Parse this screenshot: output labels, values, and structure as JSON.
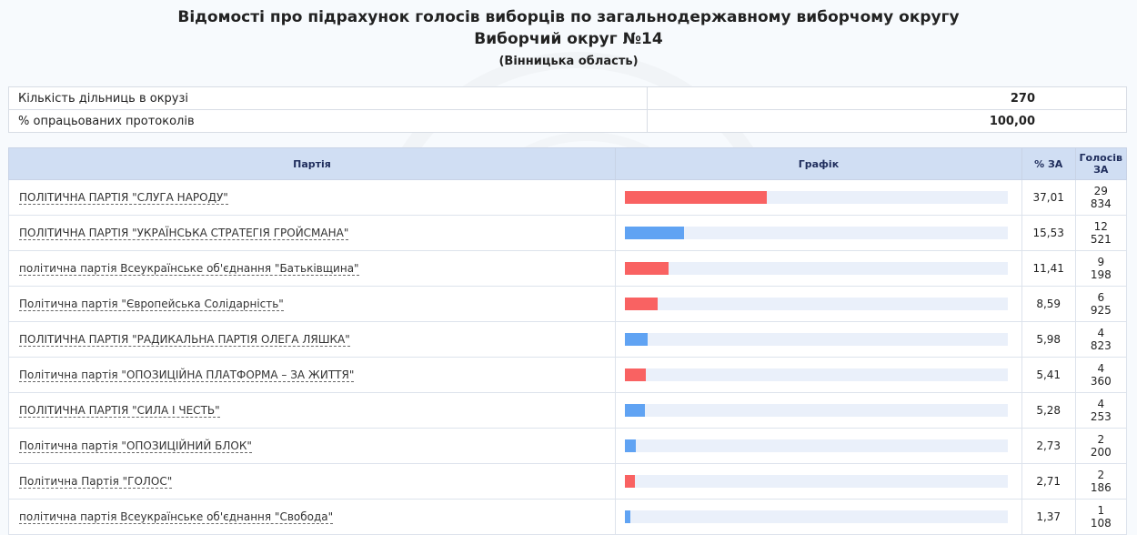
{
  "header": {
    "title": "Відомості про підрахунок голосів виборців по загальнодержавному виборчому округу",
    "district": "Виборчий округ №14",
    "region": "(Вінницька область)"
  },
  "summary": [
    {
      "label": "Кількість дільниць в окрузі",
      "value": "270"
    },
    {
      "label": "% опрацьованих протоколів",
      "value": "100,00"
    }
  ],
  "table": {
    "col_party": "Партія",
    "col_graph": "Графік",
    "col_pct": "% ЗА",
    "col_votes": "Голосів ЗА"
  },
  "colors": {
    "red": "#f96262",
    "blue": "#60a3f3"
  },
  "rows": [
    {
      "party": "ПОЛІТИЧНА ПАРТІЯ \"СЛУГА НАРОДУ\"",
      "pct": "37,01",
      "pct_value": 37.01,
      "votes_top": "29",
      "votes_bottom": "834",
      "color": "red"
    },
    {
      "party": "ПОЛІТИЧНА ПАРТІЯ \"УКРАЇНСЬКА СТРАТЕГІЯ ГРОЙСМАНА\"",
      "pct": "15,53",
      "pct_value": 15.53,
      "votes_top": "12",
      "votes_bottom": "521",
      "color": "blue"
    },
    {
      "party": "політична партія Всеукраїнське об'єднання \"Батьківщина\"",
      "pct": "11,41",
      "pct_value": 11.41,
      "votes_top": "9",
      "votes_bottom": "198",
      "color": "red"
    },
    {
      "party": "Політична партія \"Європейська Солідарність\"",
      "pct": "8,59",
      "pct_value": 8.59,
      "votes_top": "6",
      "votes_bottom": "925",
      "color": "red"
    },
    {
      "party": "ПОЛІТИЧНА ПАРТІЯ \"РАДИКАЛЬНА ПАРТІЯ ОЛЕГА ЛЯШКА\"",
      "pct": "5,98",
      "pct_value": 5.98,
      "votes_top": "4",
      "votes_bottom": "823",
      "color": "blue"
    },
    {
      "party": "Політична партія \"ОПОЗИЦІЙНА ПЛАТФОРМА – ЗА ЖИТТЯ\"",
      "pct": "5,41",
      "pct_value": 5.41,
      "votes_top": "4",
      "votes_bottom": "360",
      "color": "red"
    },
    {
      "party": "ПОЛІТИЧНА ПАРТІЯ \"СИЛА І ЧЕСТЬ\"",
      "pct": "5,28",
      "pct_value": 5.28,
      "votes_top": "4",
      "votes_bottom": "253",
      "color": "blue"
    },
    {
      "party": "Політична партія \"ОПОЗИЦІЙНИЙ БЛОК\"",
      "pct": "2,73",
      "pct_value": 2.73,
      "votes_top": "2",
      "votes_bottom": "200",
      "color": "blue"
    },
    {
      "party": "Політична Партія \"ГОЛОС\"",
      "pct": "2,71",
      "pct_value": 2.71,
      "votes_top": "2",
      "votes_bottom": "186",
      "color": "red"
    },
    {
      "party": "політична партія Всеукраїнське об'єднання \"Свобода\"",
      "pct": "1,37",
      "pct_value": 1.37,
      "votes_top": "1",
      "votes_bottom": "108",
      "color": "blue"
    }
  ]
}
